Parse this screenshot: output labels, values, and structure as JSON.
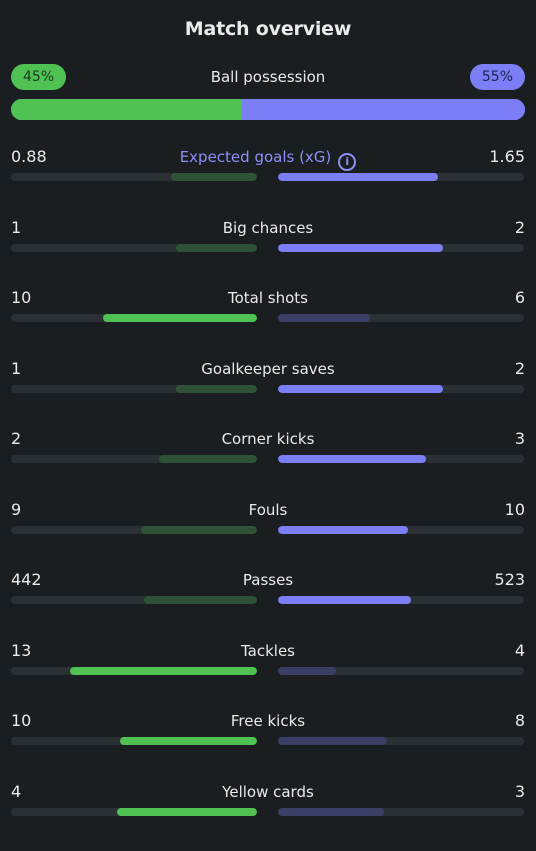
{
  "title": "Match overview",
  "colors": {
    "home_strong": "#4fc253",
    "home_weak": "#2f5236",
    "away_strong": "#7b7ef5",
    "away_weak": "#3b3f66"
  },
  "possession": {
    "label": "Ball possession",
    "home": "45%",
    "away": "55%",
    "home_share": 45
  },
  "stats": [
    {
      "label": "Expected goals (xG)",
      "home": "0.88",
      "away": "1.65",
      "home_ratio": 0.35,
      "away_ratio": 0.65,
      "info_icon": "info-icon",
      "accent": true
    },
    {
      "label": "Big chances",
      "home": "1",
      "away": "2",
      "home_ratio": 0.33,
      "away_ratio": 0.67
    },
    {
      "label": "Total shots",
      "home": "10",
      "away": "6",
      "home_ratio": 0.625,
      "away_ratio": 0.375
    },
    {
      "label": "Goalkeeper saves",
      "home": "1",
      "away": "2",
      "home_ratio": 0.33,
      "away_ratio": 0.67
    },
    {
      "label": "Corner kicks",
      "home": "2",
      "away": "3",
      "home_ratio": 0.4,
      "away_ratio": 0.6
    },
    {
      "label": "Fouls",
      "home": "9",
      "away": "10",
      "home_ratio": 0.47,
      "away_ratio": 0.53
    },
    {
      "label": "Passes",
      "home": "442",
      "away": "523",
      "home_ratio": 0.46,
      "away_ratio": 0.54
    },
    {
      "label": "Tackles",
      "home": "13",
      "away": "4",
      "home_ratio": 0.76,
      "away_ratio": 0.235
    },
    {
      "label": "Free kicks",
      "home": "10",
      "away": "8",
      "home_ratio": 0.555,
      "away_ratio": 0.445
    },
    {
      "label": "Yellow cards",
      "home": "4",
      "away": "3",
      "home_ratio": 0.57,
      "away_ratio": 0.43
    }
  ]
}
